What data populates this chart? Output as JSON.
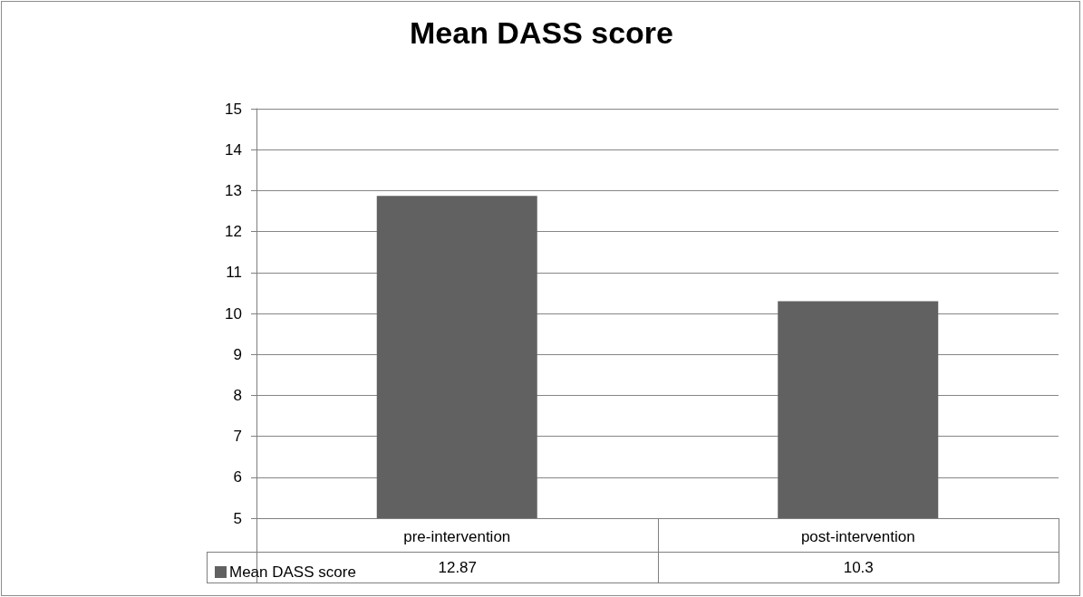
{
  "chart_data": {
    "type": "bar",
    "title": "Mean DASS score",
    "categories": [
      "pre-intervention",
      "post-intervention"
    ],
    "series": [
      {
        "name": "Mean DASS score",
        "color": "#616161",
        "values": [
          12.87,
          10.3
        ]
      }
    ],
    "ylim": [
      5,
      15
    ],
    "yticks": [
      5,
      6,
      7,
      8,
      9,
      10,
      11,
      12,
      13,
      14,
      15
    ],
    "grid": "y",
    "legend": "bottom",
    "data_labels": true
  }
}
